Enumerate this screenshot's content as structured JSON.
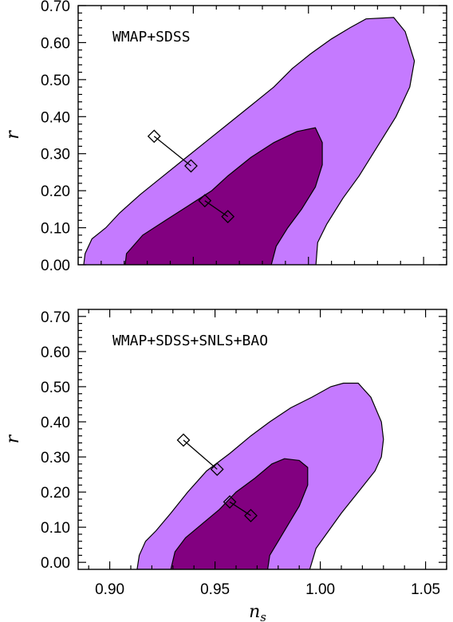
{
  "chart_data": [
    {
      "type": "contour",
      "panel_label": "WMAP+SDSS",
      "xlabel": "",
      "ylabel": "r",
      "xlim": [
        0.9,
        1.06
      ],
      "ylim": [
        0.0,
        0.7
      ],
      "x_ticks": [
        0.9,
        0.95,
        1.0,
        1.05
      ],
      "y_ticks": [
        "0.00",
        "0.10",
        "0.20",
        "0.30",
        "0.40",
        "0.50",
        "0.60",
        "0.70"
      ],
      "x_tick_labels_shown": false,
      "colors": {
        "outer": "#c57aff",
        "inner": "#820080"
      },
      "contours": {
        "outer": [
          [
            0.902,
            -0.02
          ],
          [
            0.903,
            0.03
          ],
          [
            0.906,
            0.07
          ],
          [
            0.912,
            0.1
          ],
          [
            0.918,
            0.14
          ],
          [
            0.927,
            0.19
          ],
          [
            0.935,
            0.23
          ],
          [
            0.945,
            0.28
          ],
          [
            0.955,
            0.33
          ],
          [
            0.965,
            0.38
          ],
          [
            0.975,
            0.43
          ],
          [
            0.985,
            0.48
          ],
          [
            0.993,
            0.53
          ],
          [
            1.001,
            0.57
          ],
          [
            1.01,
            0.61
          ],
          [
            1.018,
            0.64
          ],
          [
            1.025,
            0.664
          ],
          [
            1.037,
            0.668
          ],
          [
            1.042,
            0.63
          ],
          [
            1.046,
            0.55
          ],
          [
            1.044,
            0.48
          ],
          [
            1.038,
            0.4
          ],
          [
            1.03,
            0.32
          ],
          [
            1.022,
            0.24
          ],
          [
            1.015,
            0.18
          ],
          [
            1.008,
            0.11
          ],
          [
            1.004,
            0.06
          ],
          [
            1.003,
            -0.02
          ]
        ],
        "inner": [
          [
            0.92,
            -0.02
          ],
          [
            0.921,
            0.03
          ],
          [
            0.928,
            0.08
          ],
          [
            0.938,
            0.12
          ],
          [
            0.948,
            0.16
          ],
          [
            0.958,
            0.2
          ],
          [
            0.965,
            0.24
          ],
          [
            0.975,
            0.29
          ],
          [
            0.985,
            0.33
          ],
          [
            0.995,
            0.36
          ],
          [
            1.003,
            0.37
          ],
          [
            1.006,
            0.33
          ],
          [
            1.006,
            0.27
          ],
          [
            1.003,
            0.21
          ],
          [
            0.997,
            0.15
          ],
          [
            0.991,
            0.1
          ],
          [
            0.986,
            0.05
          ],
          [
            0.983,
            -0.02
          ]
        ]
      },
      "models": [
        {
          "points": [
            [
              0.933,
              0.347
            ],
            [
              0.949,
              0.267
            ]
          ]
        },
        {
          "points": [
            [
              0.955,
              0.173
            ],
            [
              0.965,
              0.13
            ]
          ]
        }
      ]
    },
    {
      "type": "contour",
      "panel_label": "WMAP+SDSS+SNLS+BAO",
      "xlabel": "n_s",
      "xlabel_text": "n",
      "xlabel_sub": "s",
      "ylabel": "r",
      "xlim": [
        0.885,
        1.06
      ],
      "ylim": [
        -0.02,
        0.72
      ],
      "x_ticks": [
        0.9,
        0.95,
        1.0,
        1.05
      ],
      "x_tick_labels": [
        "0.90",
        "0.95",
        "1.00",
        "1.05"
      ],
      "y_ticks": [
        "0.00",
        "0.10",
        "0.20",
        "0.30",
        "0.40",
        "0.50",
        "0.60",
        "0.70"
      ],
      "x_tick_labels_shown": true,
      "colors": {
        "outer": "#c57aff",
        "inner": "#820080"
      },
      "contours": {
        "outer": [
          [
            0.913,
            -0.02
          ],
          [
            0.914,
            0.02
          ],
          [
            0.917,
            0.06
          ],
          [
            0.922,
            0.09
          ],
          [
            0.929,
            0.14
          ],
          [
            0.937,
            0.2
          ],
          [
            0.946,
            0.26
          ],
          [
            0.957,
            0.31
          ],
          [
            0.967,
            0.36
          ],
          [
            0.976,
            0.4
          ],
          [
            0.986,
            0.44
          ],
          [
            0.996,
            0.47
          ],
          [
            1.005,
            0.5
          ],
          [
            1.011,
            0.51
          ],
          [
            1.018,
            0.51
          ],
          [
            1.024,
            0.47
          ],
          [
            1.029,
            0.4
          ],
          [
            1.03,
            0.35
          ],
          [
            1.029,
            0.3
          ],
          [
            1.026,
            0.26
          ],
          [
            1.018,
            0.2
          ],
          [
            1.01,
            0.14
          ],
          [
            1.004,
            0.09
          ],
          [
            0.998,
            0.04
          ],
          [
            0.995,
            -0.02
          ]
        ],
        "inner": [
          [
            0.929,
            -0.02
          ],
          [
            0.931,
            0.03
          ],
          [
            0.936,
            0.07
          ],
          [
            0.944,
            0.11
          ],
          [
            0.952,
            0.15
          ],
          [
            0.96,
            0.2
          ],
          [
            0.969,
            0.24
          ],
          [
            0.977,
            0.28
          ],
          [
            0.983,
            0.295
          ],
          [
            0.99,
            0.29
          ],
          [
            0.994,
            0.27
          ],
          [
            0.994,
            0.22
          ],
          [
            0.99,
            0.16
          ],
          [
            0.985,
            0.11
          ],
          [
            0.98,
            0.06
          ],
          [
            0.976,
            0.02
          ],
          [
            0.975,
            -0.02
          ]
        ]
      },
      "models": [
        {
          "points": [
            [
              0.935,
              0.348
            ],
            [
              0.951,
              0.265
            ]
          ]
        },
        {
          "points": [
            [
              0.957,
              0.172
            ],
            [
              0.967,
              0.133
            ]
          ]
        }
      ]
    }
  ]
}
